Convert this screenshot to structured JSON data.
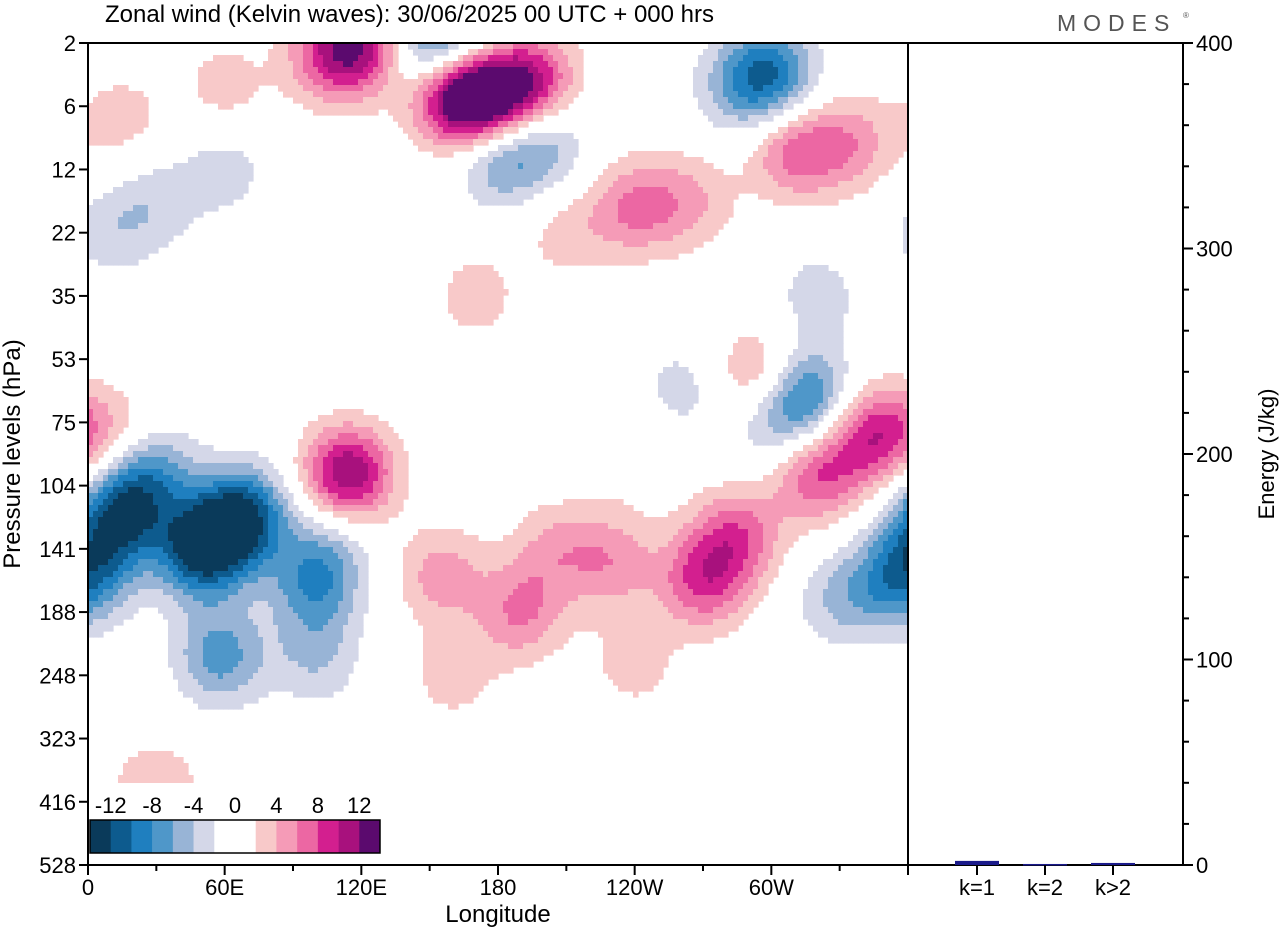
{
  "title": "Zonal wind (Kelvin waves):  30/06/2025  00 UTC  + 000 hrs",
  "brand": "MODES",
  "brand_mark": "®",
  "chart_data": [
    {
      "type": "heatmap",
      "xlabel": "Longitude",
      "ylabel": "Pressure levels (hPa)",
      "x_ticks": [
        "0",
        "60E",
        "120E",
        "180",
        "120W",
        "60W"
      ],
      "x_tick_values": [
        0,
        60,
        120,
        180,
        240,
        300
      ],
      "xlim": [
        0,
        360
      ],
      "y_ticks": [
        "2",
        "6",
        "12",
        "22",
        "35",
        "53",
        "75",
        "104",
        "141",
        "188",
        "248",
        "323",
        "416",
        "528"
      ],
      "y_reversed": true,
      "colorbar": {
        "levels": [
          -14,
          -12,
          -10,
          -8,
          -6,
          -4,
          -2,
          0,
          2,
          4,
          6,
          8,
          10,
          12,
          14
        ],
        "labels": [
          "-12",
          "-8",
          "-4",
          "0",
          "4",
          "8",
          "12"
        ],
        "label_values": [
          -12,
          -8,
          -4,
          0,
          4,
          8,
          12
        ],
        "colors": [
          "#0a3a5a",
          "#0d5b8e",
          "#1f7fbf",
          "#4f97c9",
          "#98b4d6",
          "#d4d7e8",
          "#ffffff",
          "#ffffff",
          "#f8c9c9",
          "#f59bb7",
          "#ec67a3",
          "#d31f8f",
          "#a8117d",
          "#5b0a6e"
        ],
        "legend_position": "bottom-left"
      },
      "blobs": [
        {
          "lon": 50,
          "lev": 8.0,
          "amp": -13
        },
        {
          "lon": 68,
          "lev": 7.5,
          "amp": -12
        },
        {
          "lon": 58,
          "lev": 9.7,
          "amp": -7
        },
        {
          "lon": 15,
          "lev": 7.4,
          "amp": -10
        },
        {
          "lon": 5,
          "lev": 8.1,
          "amp": -5
        },
        {
          "lon": 28,
          "lev": 6.8,
          "amp": -6
        },
        {
          "lon": 100,
          "lev": 8.5,
          "amp": -8
        },
        {
          "lon": 100,
          "lev": 9.7,
          "amp": -4
        },
        {
          "lon": 110,
          "lev": 7.5,
          "amp": -4
        },
        {
          "lon": 10,
          "lev": 6.2,
          "amp": 4
        },
        {
          "lon": 115,
          "lev": 6.8,
          "amp": 8
        },
        {
          "lon": 112,
          "lev": 7.0,
          "amp": 6
        },
        {
          "lon": 155,
          "lev": 8.4,
          "amp": 5
        },
        {
          "lon": 160,
          "lev": 10.0,
          "amp": 3
        },
        {
          "lon": 190,
          "lev": 9.0,
          "amp": 6
        },
        {
          "lon": 205,
          "lev": 8.0,
          "amp": 4
        },
        {
          "lon": 230,
          "lev": 8.2,
          "amp": 5
        },
        {
          "lon": 240,
          "lev": 9.8,
          "amp": 3
        },
        {
          "lon": 270,
          "lev": 8.5,
          "amp": 8
        },
        {
          "lon": 285,
          "lev": 7.8,
          "amp": 7
        },
        {
          "lon": 320,
          "lev": 6.8,
          "amp": 8
        },
        {
          "lon": 345,
          "lev": 6.2,
          "amp": 9
        },
        {
          "lon": 30,
          "lev": 11.8,
          "amp": 4
        },
        {
          "lon": 330,
          "lev": 8.8,
          "amp": -4
        },
        {
          "lon": 355,
          "lev": 8.5,
          "amp": -7
        },
        {
          "lon": 300,
          "lev": 6.0,
          "amp": -4
        },
        {
          "lon": 315,
          "lev": 5.6,
          "amp": -9
        },
        {
          "lon": 295,
          "lev": 5.3,
          "amp": 6
        },
        {
          "lon": 175,
          "lev": 0.8,
          "amp": 14
        },
        {
          "lon": 160,
          "lev": 0.85,
          "amp": 10
        },
        {
          "lon": 195,
          "lev": 0.6,
          "amp": 9
        },
        {
          "lon": 150,
          "lev": 0.0,
          "amp": -8
        },
        {
          "lon": 170,
          "lev": 0.05,
          "amp": -5
        },
        {
          "lon": 120,
          "lev": 0.0,
          "amp": 10
        },
        {
          "lon": 105,
          "lev": 0.2,
          "amp": 6
        },
        {
          "lon": 300,
          "lev": 0.5,
          "amp": -9
        },
        {
          "lon": 285,
          "lev": 0.7,
          "amp": -4
        },
        {
          "lon": 180,
          "lev": 1.8,
          "amp": -6
        },
        {
          "lon": 200,
          "lev": 1.6,
          "amp": -5
        },
        {
          "lon": 310,
          "lev": 1.7,
          "amp": 7
        },
        {
          "lon": 335,
          "lev": 1.6,
          "amp": 5
        },
        {
          "lon": 240,
          "lev": 2.6,
          "amp": 6
        },
        {
          "lon": 265,
          "lev": 2.5,
          "amp": 4
        },
        {
          "lon": 210,
          "lev": 3.0,
          "amp": 3
        },
        {
          "lon": 170,
          "lev": 4.0,
          "amp": 3
        },
        {
          "lon": 30,
          "lev": 2.5,
          "amp": -3
        },
        {
          "lon": 10,
          "lev": 3.0,
          "amp": -3
        },
        {
          "lon": 60,
          "lev": 2.0,
          "amp": -3
        },
        {
          "lon": 260,
          "lev": 5.5,
          "amp": -3
        },
        {
          "lon": 320,
          "lev": 4.0,
          "amp": -3
        },
        {
          "lon": 240,
          "lev": 6.5,
          "amp": 2
        },
        {
          "lon": 60,
          "lev": 0.7,
          "amp": 3
        },
        {
          "lon": 15,
          "lev": 1.2,
          "amp": 3
        }
      ]
    },
    {
      "type": "bar",
      "categories": [
        "k=1",
        "k=2",
        "k>2"
      ],
      "values": [
        2,
        0.5,
        1
      ],
      "ylabel": "Energy (J/kg)",
      "ylim": [
        0,
        400
      ],
      "y_ticks": [
        "0",
        "100",
        "200",
        "300",
        "400"
      ],
      "y_tick_values": [
        0,
        100,
        200,
        300,
        400
      ],
      "bar_color": "#1a1a8a"
    }
  ]
}
